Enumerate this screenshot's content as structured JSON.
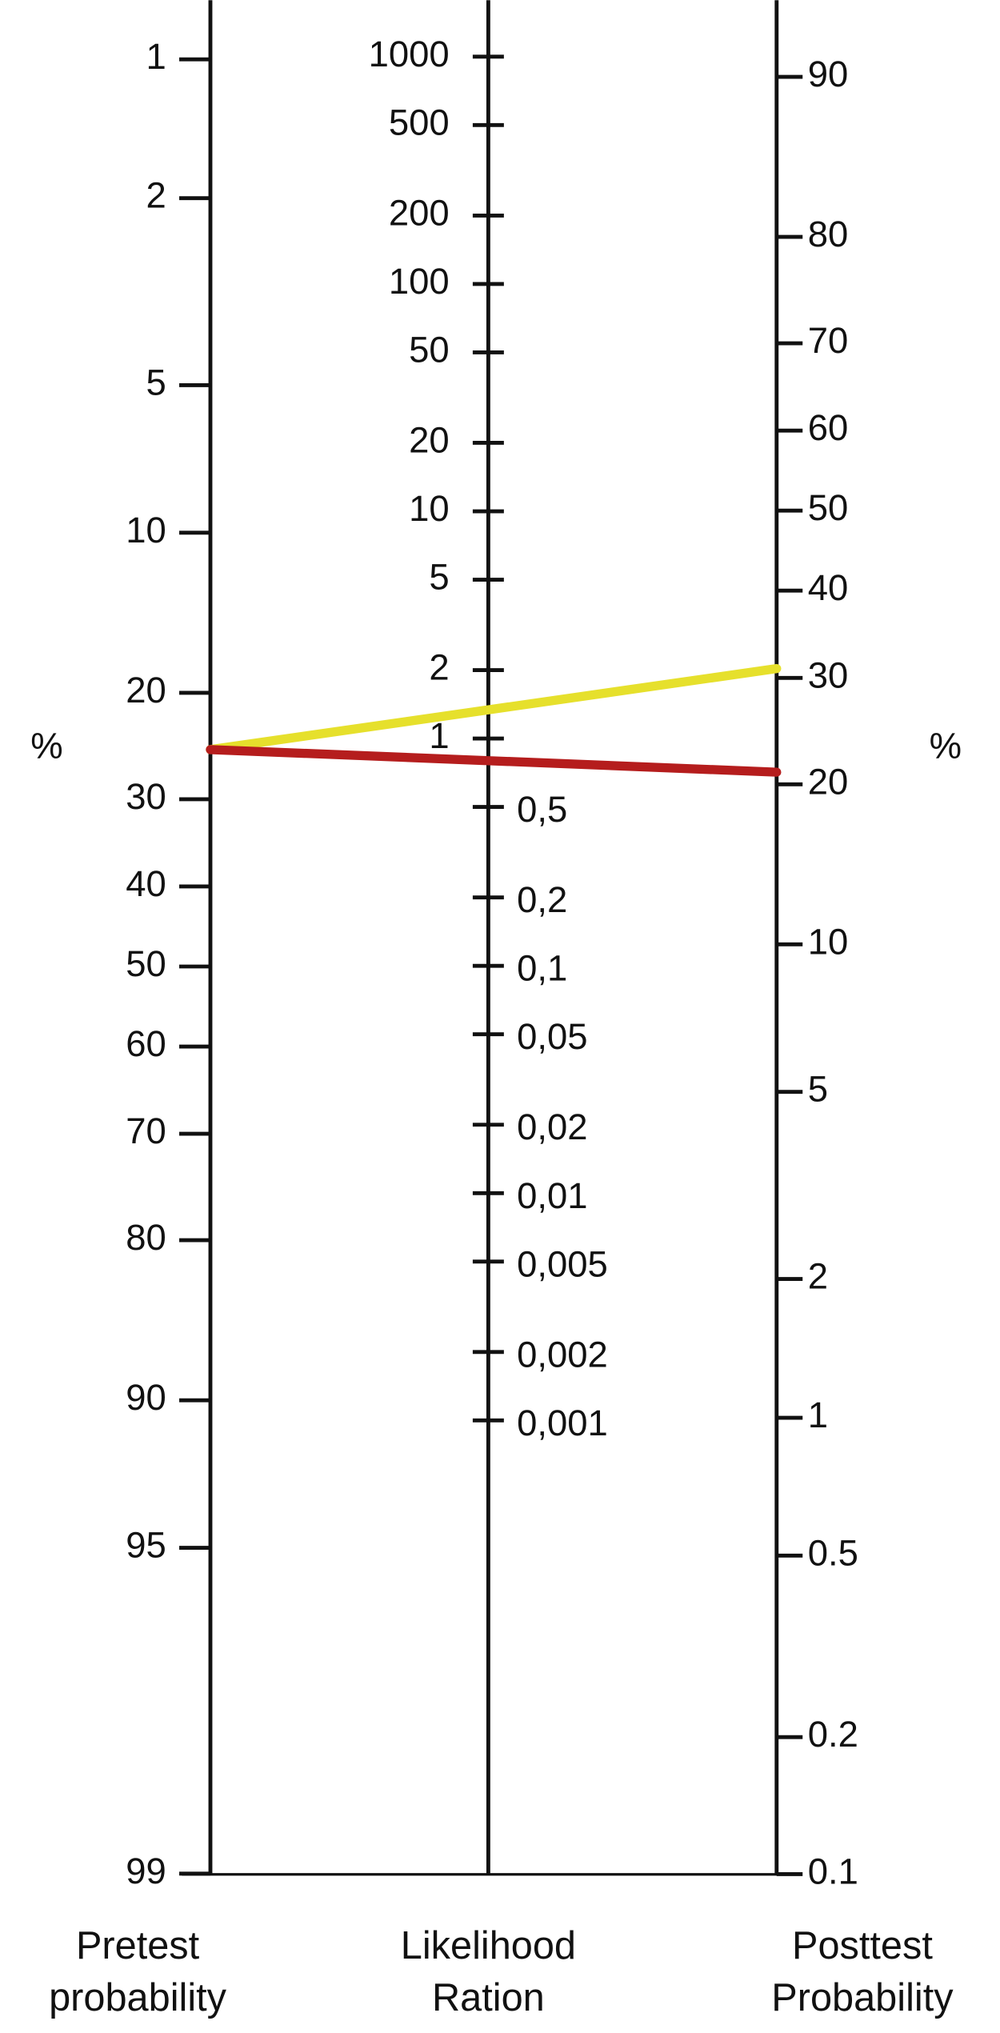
{
  "chart_data": {
    "type": "nomogram",
    "axes": [
      {
        "name": [
          "Pretest",
          "probability"
        ],
        "unit": "%",
        "scale": "logit",
        "reverse": true,
        "ticks": [
          1,
          2,
          5,
          10,
          20,
          30,
          40,
          50,
          60,
          70,
          80,
          90,
          95,
          99
        ]
      },
      {
        "name": [
          "Likelihood",
          "Ration"
        ],
        "scale": "log",
        "ticks": [
          1000,
          500,
          200,
          100,
          50,
          20,
          10,
          5,
          2,
          1,
          {
            "value": 0.5,
            "label": "0,5"
          },
          {
            "value": 0.2,
            "label": "0,2"
          },
          {
            "value": 0.1,
            "label": "0,1"
          },
          {
            "value": 0.05,
            "label": "0,05"
          },
          {
            "value": 0.02,
            "label": "0,02"
          },
          {
            "value": 0.01,
            "label": "0,01"
          },
          {
            "value": 0.005,
            "label": "0,005"
          },
          {
            "value": 0.002,
            "label": "0,002"
          },
          {
            "value": 0.001,
            "label": "0,001"
          }
        ]
      },
      {
        "name": [
          "Posttest",
          "Probability"
        ],
        "unit": "%",
        "scale": "logit",
        "ticks": [
          90,
          80,
          70,
          60,
          50,
          40,
          30,
          20,
          10,
          5,
          2,
          1,
          0.5,
          0.2,
          0.1
        ]
      }
    ],
    "series": [
      {
        "color": "#e6e02c",
        "values": [
          25,
          31
        ]
      },
      {
        "color": "#b51d1d",
        "values": [
          25,
          21
        ]
      }
    ]
  }
}
